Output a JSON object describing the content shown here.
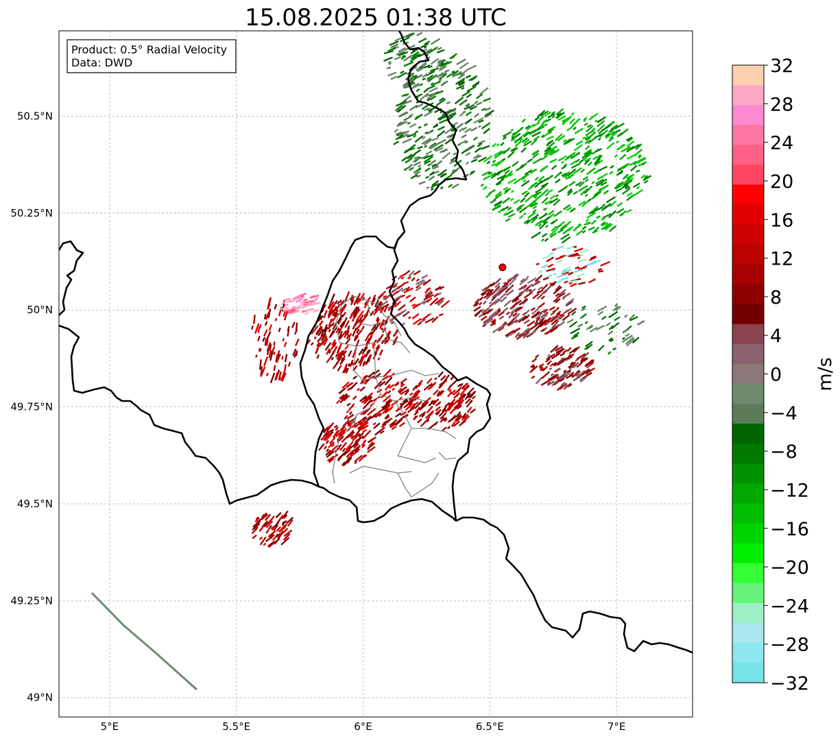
{
  "title": "15.08.2025 01:38 UTC",
  "info_box": {
    "product": "Product: 0.5° Radial Velocity",
    "source": "Data: DWD"
  },
  "map": {
    "lon_range": [
      4.8,
      7.3
    ],
    "lat_range": [
      48.95,
      50.72
    ],
    "lon_ticks": [
      {
        "value": 5.0,
        "label": "5°E"
      },
      {
        "value": 5.5,
        "label": "5.5°E"
      },
      {
        "value": 6.0,
        "label": "6°E"
      },
      {
        "value": 6.5,
        "label": "6.5°E"
      },
      {
        "value": 7.0,
        "label": "7°E"
      }
    ],
    "lat_ticks": [
      {
        "value": 49.0,
        "label": "49°N"
      },
      {
        "value": 49.25,
        "label": "49.25°N"
      },
      {
        "value": 49.5,
        "label": "49.5°N"
      },
      {
        "value": 49.75,
        "label": "49.75°N"
      },
      {
        "value": 50.0,
        "label": "50°N"
      },
      {
        "value": 50.25,
        "label": "50.25°N"
      },
      {
        "value": 50.5,
        "label": "50.5°N"
      }
    ],
    "gridlines": true,
    "radar_site": {
      "lon": 6.55,
      "lat": 50.11
    }
  },
  "colorbar": {
    "label": "m/s",
    "range": [
      -32,
      32
    ],
    "ticks": [
      {
        "value": 32,
        "label": "32"
      },
      {
        "value": 28,
        "label": "28"
      },
      {
        "value": 24,
        "label": "24"
      },
      {
        "value": 20,
        "label": "20"
      },
      {
        "value": 16,
        "label": "16"
      },
      {
        "value": 12,
        "label": "12"
      },
      {
        "value": 8,
        "label": "8"
      },
      {
        "value": 4,
        "label": "4"
      },
      {
        "value": 0,
        "label": "0"
      },
      {
        "value": -4,
        "label": "−4"
      },
      {
        "value": -8,
        "label": "−8"
      },
      {
        "value": -12,
        "label": "−12"
      },
      {
        "value": -16,
        "label": "−16"
      },
      {
        "value": -20,
        "label": "−20"
      },
      {
        "value": -24,
        "label": "−24"
      },
      {
        "value": -28,
        "label": "−28"
      },
      {
        "value": -32,
        "label": "−32"
      }
    ],
    "colors_top_to_bottom": [
      "#fecfae",
      "#fea9c4",
      "#fd8ad0",
      "#fd77a2",
      "#fd5f85",
      "#fd4660",
      "#fe0000",
      "#e00000",
      "#cc0000",
      "#bb0000",
      "#a80000",
      "#8c0000",
      "#730000",
      "#8a434e",
      "#8a616e",
      "#8a7878",
      "#6d8a6d",
      "#5c7c59",
      "#006600",
      "#007a00",
      "#009100",
      "#00a800",
      "#00bf00",
      "#00d400",
      "#00ee00",
      "#33ff33",
      "#66f57a",
      "#9cf0c4",
      "#a9e6ee",
      "#8ce8ee",
      "#76e2e8"
    ]
  }
}
